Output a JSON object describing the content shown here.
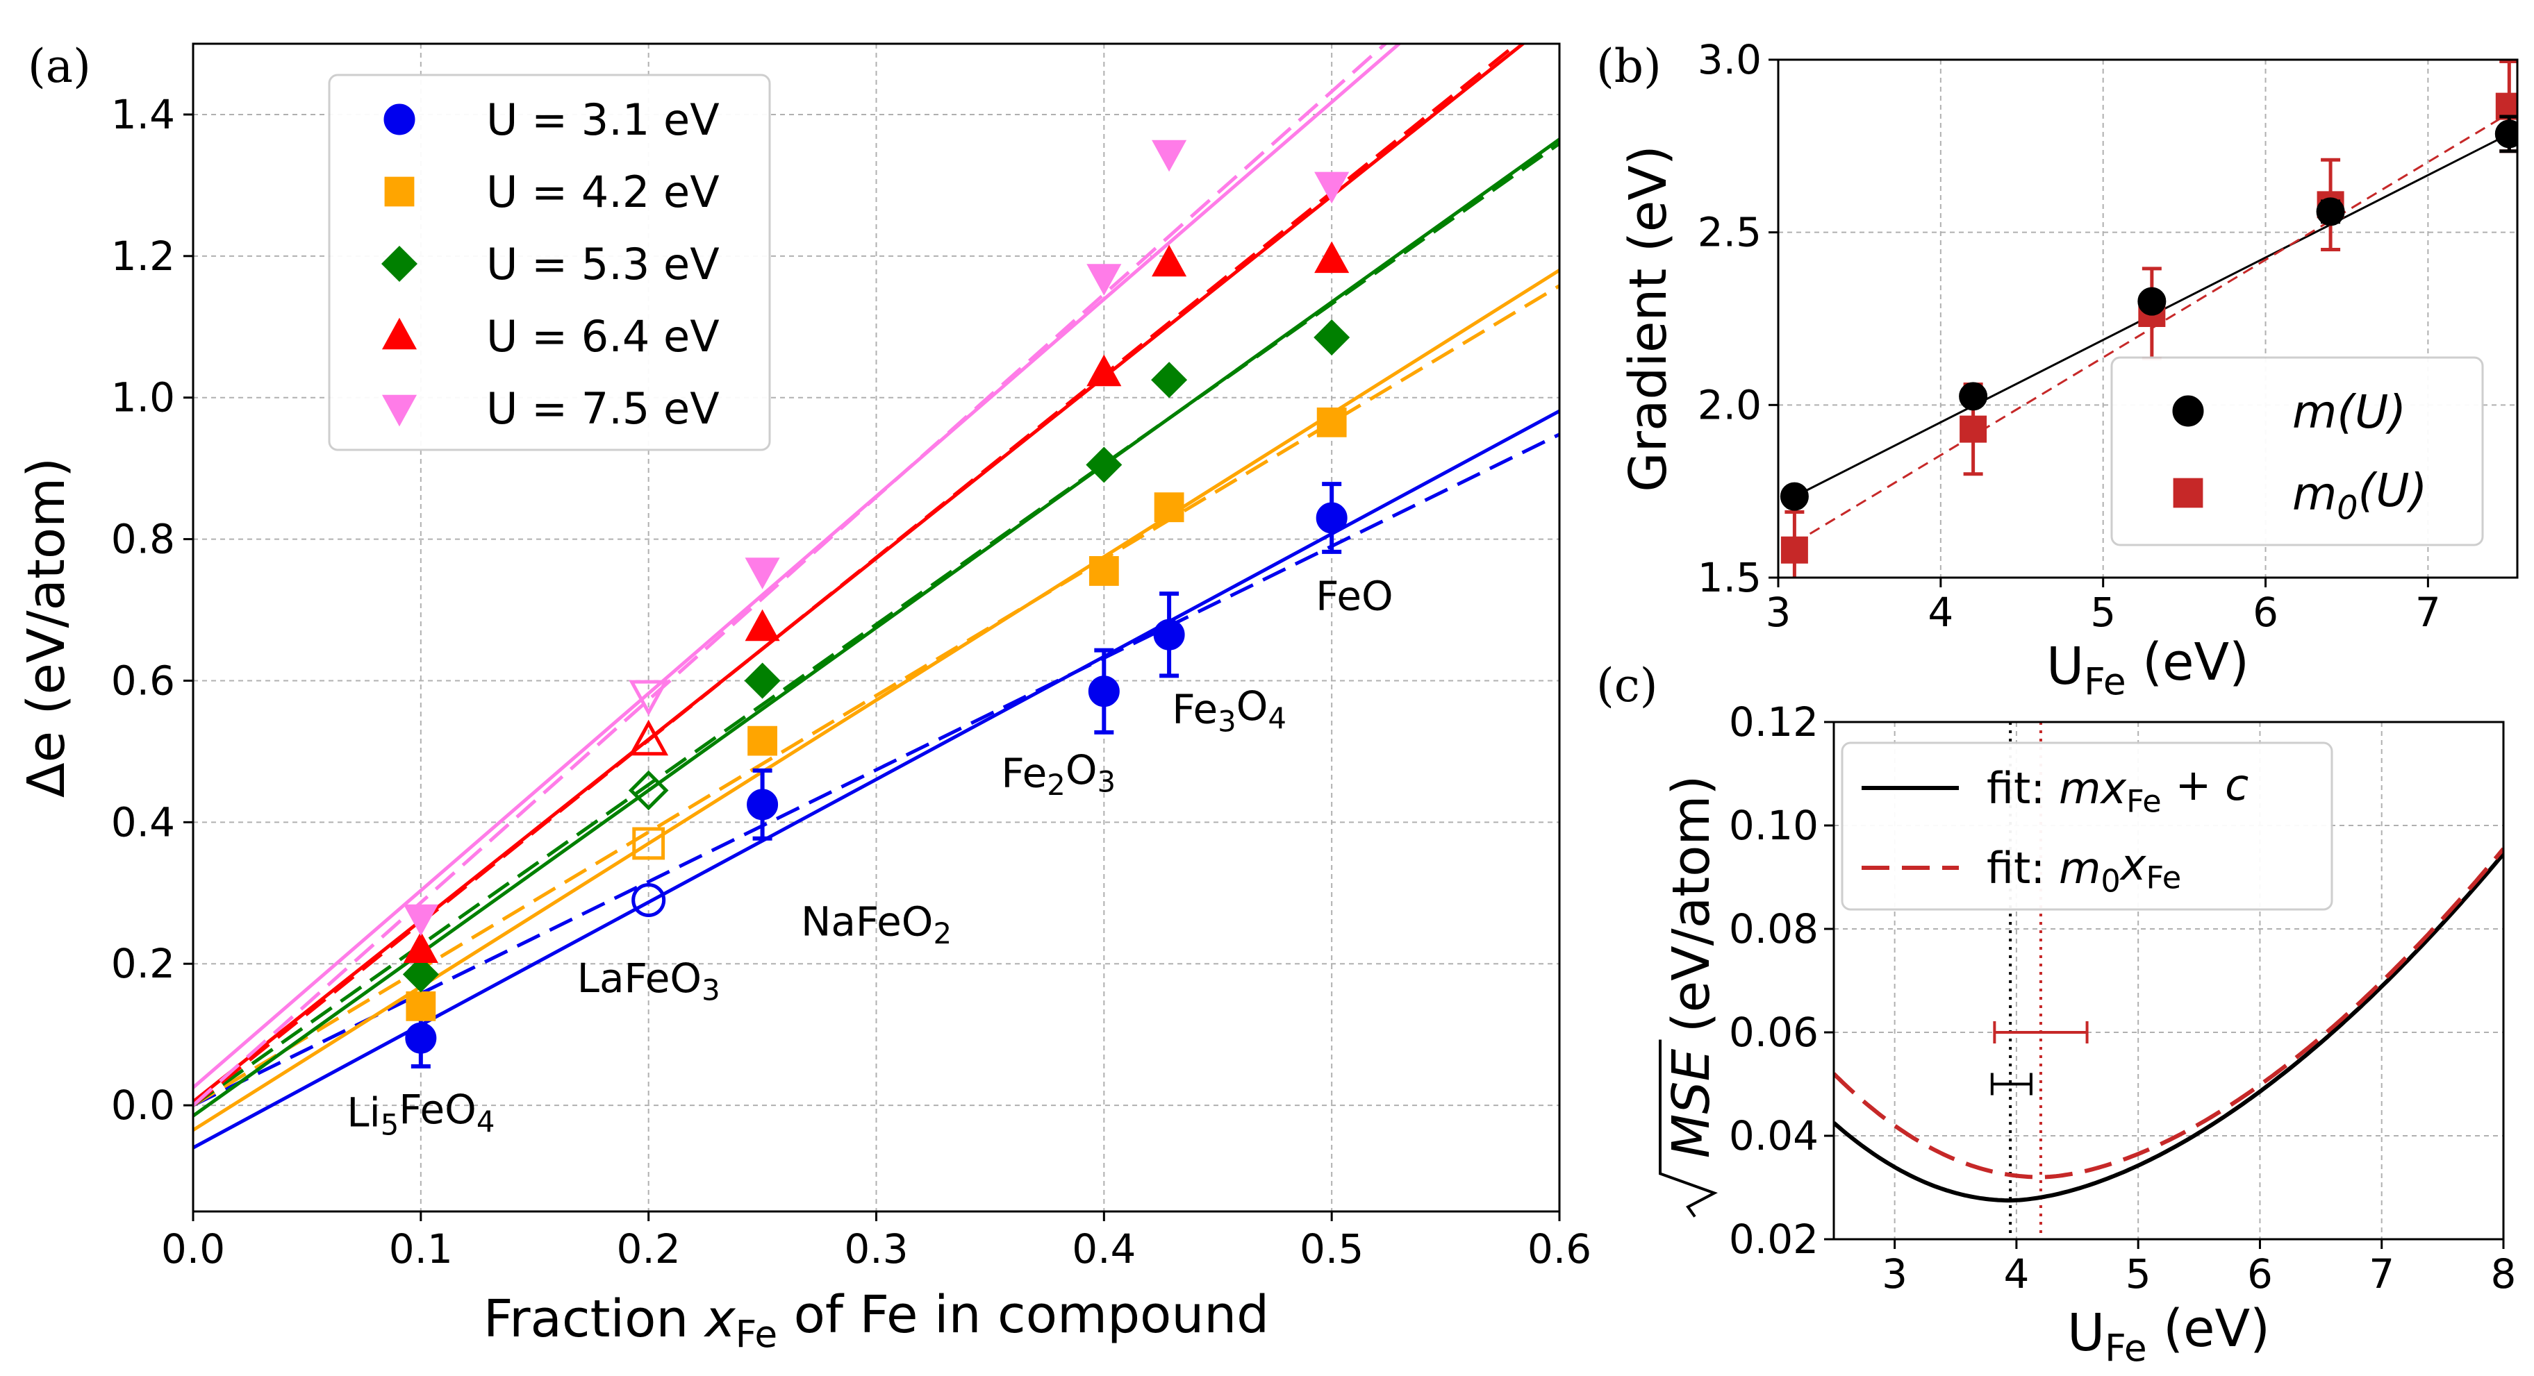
{
  "chart_data": [
    {
      "panel": "(a)",
      "type": "scatter",
      "xlabel": "Fraction x_Fe of Fe in compound",
      "xlabel_parts": [
        "Fraction ",
        "x",
        "Fe",
        " of Fe in compound"
      ],
      "ylabel": "Δe (eV/atom)",
      "xlim": [
        0.0,
        0.6
      ],
      "ylim": [
        -0.15,
        1.5
      ],
      "xticks": [
        0.0,
        0.1,
        0.2,
        0.3,
        0.4,
        0.5,
        0.6
      ],
      "xtick_labels": [
        "0.0",
        "0.1",
        "0.2",
        "0.3",
        "0.4",
        "0.5",
        "0.6"
      ],
      "yticks": [
        0.0,
        0.2,
        0.4,
        0.6,
        0.8,
        1.0,
        1.2,
        1.4
      ],
      "ytick_labels": [
        "0.0",
        "0.2",
        "0.4",
        "0.6",
        "0.8",
        "1.0",
        "1.2",
        "1.4"
      ],
      "grid": true,
      "legend_position": "top-left",
      "x": [
        0.1,
        0.2,
        0.25,
        0.4,
        0.4286,
        0.5
      ],
      "open_marker_index": 1,
      "series": [
        {
          "name": "U = 3.1 eV",
          "marker": "circle",
          "color": "#0000ee",
          "values": [
            0.095,
            0.29,
            0.425,
            0.585,
            0.665,
            0.83
          ],
          "errors": [
            0.04,
            0,
            0.048,
            0.058,
            0.058,
            0.048
          ],
          "fit": [
            -0.06,
            1.735
          ],
          "fit0": [
            0,
            1.58
          ]
        },
        {
          "name": "U = 4.2 eV",
          "marker": "square",
          "color": "#ffa500",
          "values": [
            0.14,
            0.37,
            0.515,
            0.755,
            0.845,
            0.965
          ],
          "fit": [
            -0.035,
            2.025
          ],
          "fit0": [
            0,
            1.93
          ]
        },
        {
          "name": "U = 5.3 eV",
          "marker": "diamond",
          "color": "#008000",
          "values": [
            0.185,
            0.445,
            0.6,
            0.905,
            1.025,
            1.085
          ],
          "fit": [
            -0.015,
            2.3
          ],
          "fit0": [
            0,
            2.265
          ]
        },
        {
          "name": "U = 6.4 eV",
          "marker": "triangle-up",
          "color": "#ff0000",
          "values": [
            0.22,
            0.515,
            0.675,
            1.035,
            1.19,
            1.195
          ],
          "fit": [
            0.005,
            2.56
          ],
          "fit0": [
            0,
            2.58
          ]
        },
        {
          "name": "U = 7.5 eV",
          "marker": "triangle-down",
          "color": "#ff7ce8",
          "values": [
            0.265,
            0.58,
            0.755,
            1.17,
            1.345,
            1.3
          ],
          "fit": [
            0.025,
            2.785
          ],
          "fit0": [
            0,
            2.865
          ]
        }
      ],
      "annotations": [
        {
          "text": "Li5FeO4",
          "parts": [
            "Li",
            "5",
            "FeO",
            "4"
          ],
          "x": 0.1,
          "y": -0.03
        },
        {
          "text": "LaFeO3",
          "parts": [
            "LaFeO",
            "3"
          ],
          "x": 0.2,
          "y": 0.16
        },
        {
          "text": "NaFeO2",
          "parts": [
            "NaFeO",
            "2"
          ],
          "x": 0.3,
          "y": 0.24
        },
        {
          "text": "Fe2O3",
          "parts": [
            "Fe",
            "2",
            "O",
            "3"
          ],
          "x": 0.38,
          "y": 0.45
        },
        {
          "text": "Fe3O4",
          "parts": [
            "Fe",
            "3",
            "O",
            "4"
          ],
          "x": 0.455,
          "y": 0.54
        },
        {
          "text": "FeO",
          "parts": [
            "FeO"
          ],
          "x": 0.51,
          "y": 0.7
        }
      ]
    },
    {
      "panel": "(b)",
      "type": "scatter",
      "xlabel": "U_Fe (eV)",
      "xlabel_parts": [
        "U",
        "Fe",
        " (eV)"
      ],
      "ylabel": "Gradient (eV)",
      "xlim": [
        3.0,
        7.55
      ],
      "ylim": [
        1.5,
        3.0
      ],
      "xticks": [
        3,
        4,
        5,
        6,
        7
      ],
      "xtick_labels": [
        "3",
        "4",
        "5",
        "6",
        "7"
      ],
      "yticks": [
        1.5,
        2.0,
        2.5,
        3.0
      ],
      "ytick_labels": [
        "1.5",
        "2.0",
        "2.5",
        "3.0"
      ],
      "grid": true,
      "legend_position": "bottom-right",
      "x": [
        3.1,
        4.2,
        5.3,
        6.4,
        7.5
      ],
      "series": [
        {
          "name": "m(U)",
          "name_parts": [
            "m",
            "",
            "(U)"
          ],
          "marker": "circle",
          "color": "#000000",
          "values": [
            1.735,
            2.025,
            2.3,
            2.56,
            2.785
          ],
          "errors": [
            0.02,
            0.02,
            0.02,
            0.03,
            0.05
          ],
          "fit_line": [
            1.735,
            2.785
          ],
          "line_style": "solid"
        },
        {
          "name": "m0(U)",
          "name_parts": [
            "m",
            "0",
            "(U)"
          ],
          "marker": "square",
          "color": "#c62828",
          "values": [
            1.58,
            1.93,
            2.265,
            2.58,
            2.865
          ],
          "errors": [
            0.11,
            0.13,
            0.13,
            0.13,
            0.13
          ],
          "fit_line": [
            1.6,
            2.845
          ],
          "line_style": "dashed"
        }
      ]
    },
    {
      "panel": "(c)",
      "type": "line",
      "xlabel": "U_Fe (eV)",
      "xlabel_parts": [
        "U",
        "Fe",
        " (eV)"
      ],
      "ylabel": "√MSE (eV/atom)",
      "ylabel_parts": [
        "MSE",
        " (eV/atom)"
      ],
      "xlim": [
        2.5,
        8.0
      ],
      "ylim": [
        0.02,
        0.12
      ],
      "xticks": [
        3,
        4,
        5,
        6,
        7,
        8
      ],
      "xtick_labels": [
        "3",
        "4",
        "5",
        "6",
        "7",
        "8"
      ],
      "yticks": [
        0.02,
        0.04,
        0.06,
        0.08,
        0.1,
        0.12
      ],
      "ytick_labels": [
        "0.02",
        "0.04",
        "0.06",
        "0.08",
        "0.10",
        "0.12"
      ],
      "grid": true,
      "legend_position": "top-left",
      "series": [
        {
          "name": "fit: mx_Fe + c",
          "name_parts": [
            "fit: ",
            "mx",
            "Fe",
            " + ",
            "c"
          ],
          "color": "#000000",
          "line_style": "solid",
          "min_x": 3.95,
          "min_y": 0.0275,
          "left_y": 0.0425,
          "right_y": 0.0945
        },
        {
          "name": "fit: m0x_Fe",
          "name_parts": [
            "fit: ",
            "m",
            "0",
            "x",
            "Fe"
          ],
          "color": "#c62828",
          "line_style": "dashed",
          "min_x": 4.2,
          "min_y": 0.032,
          "left_y": 0.052,
          "right_y": 0.0955
        }
      ],
      "optimum_markers": [
        {
          "series": "fit: mx_Fe + c",
          "x": 3.95,
          "xerr_low": 3.8,
          "xerr_high": 4.12,
          "y": 0.05,
          "color": "#000000"
        },
        {
          "series": "fit: m0x_Fe",
          "x": 4.2,
          "xerr_low": 3.82,
          "xerr_high": 4.58,
          "y": 0.06,
          "color": "#c62828"
        }
      ]
    }
  ]
}
